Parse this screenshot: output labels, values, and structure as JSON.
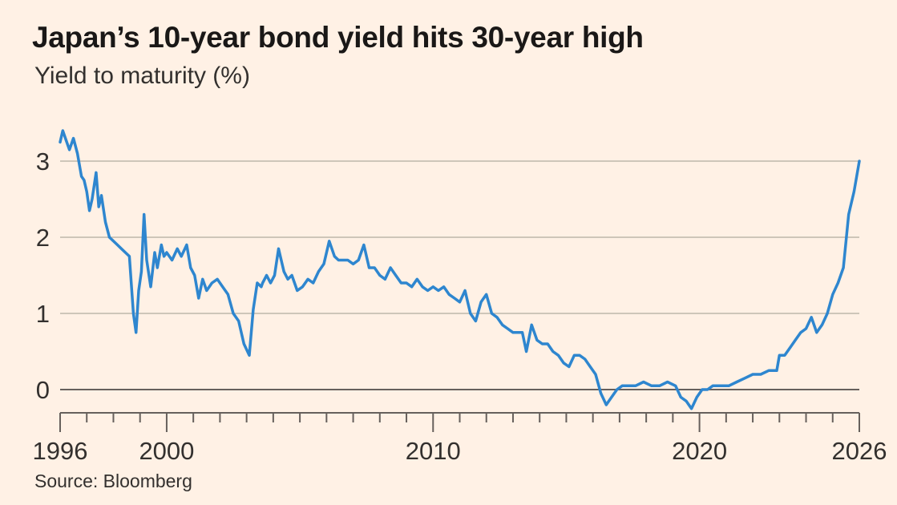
{
  "title": "Japan’s 10-year bond yield hits 30-year high",
  "subtitle": "Yield to maturity (%)",
  "source": "Source: Bloomberg",
  "colors": {
    "background": "#fff1e5",
    "line": "#2e86cf",
    "grid": "#cec6b9",
    "axis": "#66605c"
  },
  "chart_data": {
    "type": "line",
    "title": "Japan’s 10-year bond yield hits 30-year high",
    "subtitle": "Yield to maturity (%)",
    "xlabel": "",
    "ylabel": "",
    "xlim": [
      1996,
      2026
    ],
    "ylim": [
      -0.3,
      3.6
    ],
    "yticks": [
      0,
      1,
      2,
      3
    ],
    "xtick_labels": [
      "1996",
      "2000",
      "2010",
      "2020",
      "2026"
    ],
    "xtick_values": [
      1996,
      2000,
      2010,
      2020,
      2026
    ],
    "minor_xticks": [
      1996,
      1997,
      1998,
      1999,
      2000,
      2001,
      2002,
      2003,
      2004,
      2005,
      2006,
      2007,
      2008,
      2009,
      2010,
      2011,
      2012,
      2013,
      2014,
      2015,
      2016,
      2017,
      2018,
      2019,
      2020,
      2021,
      2022,
      2023,
      2024,
      2025,
      2026
    ],
    "grid": true,
    "legend": "none",
    "series": [
      {
        "values_x": [
          1996.0,
          1996.1,
          1996.2,
          1996.35,
          1996.5,
          1996.65,
          1996.8,
          1996.9,
          1997.0,
          1997.1,
          1997.2,
          1997.35,
          1997.45,
          1997.55,
          1997.7,
          1997.85,
          1998.0,
          1998.15,
          1998.3,
          1998.45,
          1998.6,
          1998.75,
          1998.85,
          1998.95,
          1999.05,
          1999.15,
          1999.25,
          1999.4,
          1999.55,
          1999.65,
          1999.8,
          1999.9,
          2000.0,
          2000.2,
          2000.4,
          2000.55,
          2000.75,
          2000.9,
          2001.05,
          2001.2,
          2001.35,
          2001.5,
          2001.7,
          2001.9,
          2002.1,
          2002.3,
          2002.5,
          2002.7,
          2002.9,
          2003.1,
          2003.25,
          2003.4,
          2003.55,
          2003.6,
          2003.75,
          2003.9,
          2004.05,
          2004.2,
          2004.4,
          2004.55,
          2004.7,
          2004.9,
          2005.1,
          2005.3,
          2005.5,
          2005.7,
          2005.9,
          2006.1,
          2006.3,
          2006.45,
          2006.6,
          2006.8,
          2007.0,
          2007.2,
          2007.4,
          2007.6,
          2007.8,
          2008.0,
          2008.2,
          2008.4,
          2008.6,
          2008.8,
          2009.0,
          2009.2,
          2009.4,
          2009.6,
          2009.8,
          2010.0,
          2010.2,
          2010.4,
          2010.6,
          2010.8,
          2011.0,
          2011.2,
          2011.4,
          2011.6,
          2011.8,
          2012.0,
          2012.2,
          2012.4,
          2012.6,
          2012.8,
          2013.0,
          2013.2,
          2013.35,
          2013.5,
          2013.7,
          2013.9,
          2014.1,
          2014.3,
          2014.5,
          2014.7,
          2014.9,
          2015.1,
          2015.3,
          2015.5,
          2015.7,
          2015.9,
          2016.1,
          2016.3,
          2016.5,
          2016.7,
          2016.9,
          2017.1,
          2017.3,
          2017.6,
          2017.9,
          2018.2,
          2018.5,
          2018.8,
          2019.1,
          2019.3,
          2019.5,
          2019.7,
          2019.9,
          2020.1,
          2020.3,
          2020.5,
          2020.8,
          2021.1,
          2021.4,
          2021.7,
          2022.0,
          2022.3,
          2022.6,
          2022.9,
          2023.0,
          2023.2,
          2023.4,
          2023.6,
          2023.8,
          2024.0,
          2024.2,
          2024.4,
          2024.6,
          2024.8,
          2025.0,
          2025.2,
          2025.4,
          2025.6,
          2025.8,
          2026.0
        ],
        "values": [
          3.25,
          3.4,
          3.3,
          3.15,
          3.3,
          3.1,
          2.8,
          2.75,
          2.6,
          2.35,
          2.5,
          2.85,
          2.4,
          2.55,
          2.2,
          2.0,
          1.95,
          1.9,
          1.85,
          1.8,
          1.75,
          1.0,
          0.75,
          1.3,
          1.55,
          2.3,
          1.7,
          1.35,
          1.8,
          1.6,
          1.9,
          1.75,
          1.8,
          1.7,
          1.85,
          1.75,
          1.9,
          1.6,
          1.5,
          1.2,
          1.45,
          1.3,
          1.4,
          1.45,
          1.35,
          1.25,
          1.0,
          0.9,
          0.6,
          0.45,
          1.05,
          1.4,
          1.35,
          1.4,
          1.5,
          1.4,
          1.5,
          1.85,
          1.55,
          1.45,
          1.5,
          1.3,
          1.35,
          1.45,
          1.4,
          1.55,
          1.65,
          1.95,
          1.75,
          1.7,
          1.7,
          1.7,
          1.65,
          1.7,
          1.9,
          1.6,
          1.6,
          1.5,
          1.45,
          1.6,
          1.5,
          1.4,
          1.4,
          1.35,
          1.45,
          1.35,
          1.3,
          1.35,
          1.3,
          1.35,
          1.25,
          1.2,
          1.15,
          1.3,
          1.0,
          0.9,
          1.15,
          1.25,
          1.0,
          0.95,
          0.85,
          0.8,
          0.75,
          0.75,
          0.75,
          0.5,
          0.85,
          0.65,
          0.6,
          0.6,
          0.5,
          0.45,
          0.35,
          0.3,
          0.45,
          0.45,
          0.4,
          0.3,
          0.2,
          -0.05,
          -0.2,
          -0.1,
          0.0,
          0.05,
          0.05,
          0.05,
          0.1,
          0.05,
          0.05,
          0.1,
          0.05,
          -0.1,
          -0.15,
          -0.25,
          -0.1,
          0.0,
          0.0,
          0.05,
          0.05,
          0.05,
          0.1,
          0.15,
          0.2,
          0.2,
          0.25,
          0.25,
          0.45,
          0.45,
          0.55,
          0.65,
          0.75,
          0.8,
          0.95,
          0.75,
          0.85,
          1.0,
          1.25,
          1.4,
          1.6,
          2.3,
          2.6,
          3.0
        ],
        "name": ""
      }
    ]
  }
}
